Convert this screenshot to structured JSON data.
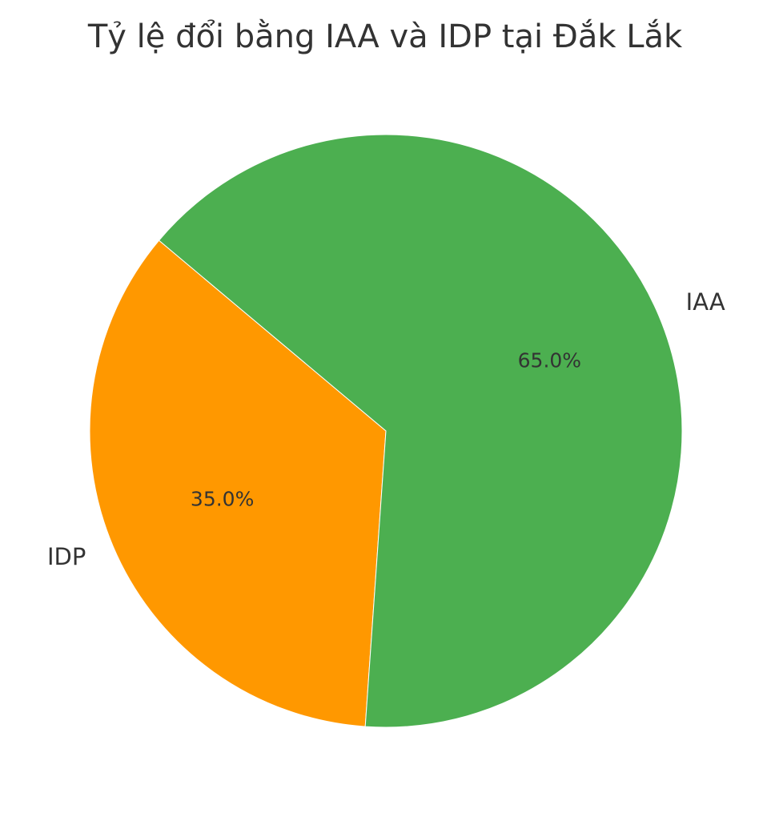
{
  "chart_data": {
    "type": "pie",
    "title": "Tỷ lệ đổi bằng IAA và IDP tại Đắk Lắk",
    "slices": [
      {
        "label": "IDP",
        "value": 35.0,
        "percent_label": "35.0%",
        "color": "#ff9800"
      },
      {
        "label": "IAA",
        "value": 65.0,
        "percent_label": "65.0%",
        "color": "#4caf50"
      }
    ],
    "legend": "none"
  }
}
